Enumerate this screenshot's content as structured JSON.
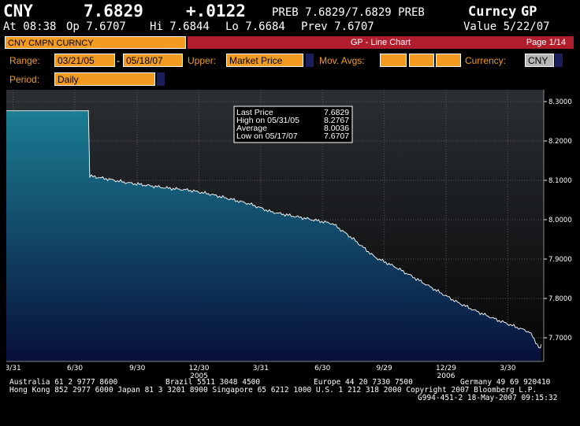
{
  "header": {
    "ticker": "CNY",
    "price": "7.6829",
    "change": "+.0122",
    "preb": "PREB 7.6829/7.6829 PREB",
    "market": "Curncy",
    "function": "GP",
    "at": "At 08:38",
    "open": "Op 7.6707",
    "high": "Hi 7.6844",
    "low": "Lo 7.6684",
    "prev": "Prev 7.6707",
    "value": "Value  5/22/07"
  },
  "bar": {
    "security": "CNY CMPN CURNCY",
    "title": "GP - Line Chart",
    "page": "Page 1/14"
  },
  "controls": {
    "range_label": "Range:",
    "range_start": "03/21/05",
    "range_sep": "-",
    "range_end": "05/18/07",
    "upper_label": "Upper:",
    "upper_value": "Market Price",
    "movavg_label": "Mov. Avgs:",
    "currency_label": "Currency:",
    "currency_value": "CNY",
    "period_label": "Period:",
    "period_value": "Daily"
  },
  "legend": {
    "rows": [
      {
        "label": "Last Price",
        "value": "7.6829"
      },
      {
        "label": "High on  05/31/05",
        "value": "8.2767"
      },
      {
        "label": "Average",
        "value": "8.0036"
      },
      {
        "label": "Low on  05/17/07",
        "value": "7.6707"
      }
    ]
  },
  "chart_data": {
    "type": "area",
    "ylim": [
      7.64,
      8.33
    ],
    "yticks": [
      7.7,
      7.8,
      7.9,
      8.0,
      8.1,
      8.2,
      8.3
    ],
    "ytick_labels": [
      "7.7000",
      "7.8000",
      "7.9000",
      "8.0000",
      "8.1000",
      "8.2000",
      "8.3000"
    ],
    "xticks": [
      "3/31",
      "6/30",
      "9/30",
      "12/30",
      "3/31",
      "6/30",
      "9/29",
      "12/29",
      "3/30"
    ],
    "xtick_years": [
      "",
      "",
      "",
      "2005",
      "",
      "",
      "",
      "2006",
      ""
    ],
    "x_dates": [
      "2005-03-21",
      "2005-07-20",
      "2005-07-22",
      "2005-08-15",
      "2005-09-15",
      "2005-10-15",
      "2005-11-15",
      "2005-12-15",
      "2006-01-15",
      "2006-02-15",
      "2006-03-15",
      "2006-04-15",
      "2006-05-15",
      "2006-06-15",
      "2006-07-15",
      "2006-08-15",
      "2006-09-15",
      "2006-10-15",
      "2006-11-15",
      "2006-12-15",
      "2007-01-15",
      "2007-02-15",
      "2007-03-15",
      "2007-04-15",
      "2007-05-01",
      "2007-05-17",
      "2007-05-18"
    ],
    "values": [
      8.2767,
      8.2767,
      8.111,
      8.104,
      8.094,
      8.087,
      8.08,
      8.075,
      8.065,
      8.052,
      8.04,
      8.02,
      8.01,
      8.0,
      7.99,
      7.95,
      7.905,
      7.88,
      7.85,
      7.82,
      7.79,
      7.765,
      7.745,
      7.725,
      7.715,
      7.6707,
      7.6829
    ],
    "colors": {
      "fill_top": "#1b7d93",
      "fill_bottom": "#08103a",
      "line": "#ffffff",
      "grid": "#555555"
    }
  },
  "footer": {
    "line1a": "Australia 61 2 9777 8600",
    "line1b": "Brazil 5511 3048 4500",
    "line1c": "Europe 44 20 7330 7500",
    "line1d": "Germany 49 69 920410",
    "line2": "Hong Kong 852 2977 6000 Japan 81 3 3201 8900 Singapore 65 6212 1000 U.S. 1 212 318 2000 Copyright 2007 Bloomberg L.P.",
    "line3": "G994-451-2 18-May-2007 09:15:32"
  }
}
